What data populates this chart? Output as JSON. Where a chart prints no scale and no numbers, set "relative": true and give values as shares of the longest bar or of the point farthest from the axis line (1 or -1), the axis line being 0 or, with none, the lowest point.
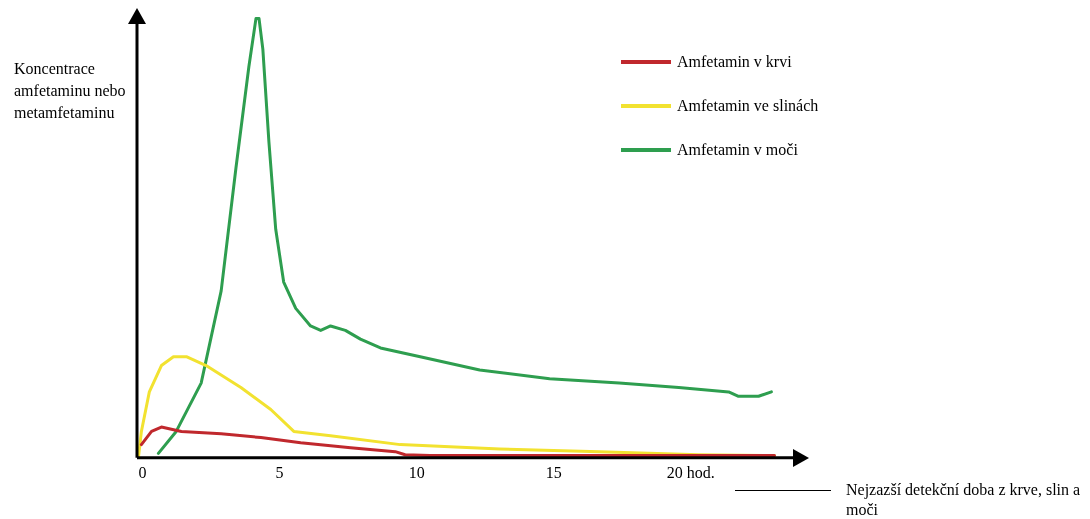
{
  "chart_data": {
    "type": "line",
    "relative": true,
    "xlabel": "Nejzazší detekční doba z krve, slin a moči",
    "ylabel": "Koncentrace amfetaminu nebo metamfetaminu",
    "xlim": [
      -0.2,
      23.8
    ],
    "xticks": [
      0,
      5,
      10,
      15,
      {
        "value": 20,
        "label": "20 hod."
      }
    ],
    "grid": false,
    "legend": "top right",
    "marker": "none",
    "line_style": "solid",
    "series": [
      {
        "name": "Amfetamin v krvi",
        "color": "#c0282d",
        "x": [
          -0.04,
          0.33,
          0.69,
          1.42,
          2.87,
          4.32,
          5.77,
          7.59,
          9.22,
          9.58,
          10.49,
          14.85,
          20.29,
          23.05
        ],
        "values": [
          0.03,
          0.06,
          0.07,
          0.06,
          0.055,
          0.046,
          0.034,
          0.023,
          0.014,
          0.007,
          0.005,
          0.005,
          0.005,
          0.005
        ]
      },
      {
        "name": "Amfetamin ve slinách",
        "color": "#f2e230",
        "x": [
          -0.15,
          -0.04,
          0.25,
          0.69,
          1.13,
          1.6,
          2.32,
          3.59,
          4.68,
          5.52,
          6.86,
          9.4,
          13.03,
          16.66,
          20.29,
          23.05
        ],
        "values": [
          0,
          0.06,
          0.15,
          0.21,
          0.23,
          0.23,
          0.21,
          0.16,
          0.11,
          0.06,
          0.05,
          0.03,
          0.02,
          0.014,
          0.007,
          0.005
        ]
      },
      {
        "name": "Amfetamin v moči",
        "color": "#2e9e4f",
        "x": [
          0.58,
          1.23,
          2.14,
          2.87,
          3.41,
          3.88,
          4.14,
          4.25,
          4.39,
          4.61,
          4.86,
          5.15,
          5.59,
          6.13,
          6.5,
          6.86,
          7.4,
          7.95,
          8.68,
          10.13,
          12.3,
          14.85,
          17.39,
          19.56,
          21.38,
          21.74,
          22.47,
          22.94
        ],
        "values": [
          0.01,
          0.06,
          0.17,
          0.38,
          0.66,
          0.89,
          1,
          1,
          0.93,
          0.72,
          0.52,
          0.4,
          0.34,
          0.3,
          0.29,
          0.3,
          0.29,
          0.27,
          0.25,
          0.23,
          0.2,
          0.18,
          0.17,
          0.16,
          0.15,
          0.14,
          0.14,
          0.15
        ]
      }
    ]
  }
}
